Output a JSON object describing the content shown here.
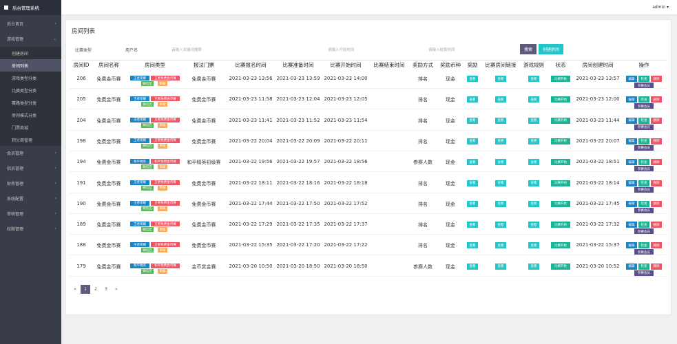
{
  "app": {
    "title": "后台管理系统",
    "user": "admin",
    "user_caret": "▾"
  },
  "sidebar": {
    "menus": [
      {
        "label": "后台首页"
      },
      {
        "label": "游戏管理",
        "open": true,
        "children": [
          "创建房间",
          "房间列表",
          "游戏类型分类",
          "比赛类型分类",
          "赛路类型分类",
          "房间模式分类",
          "门票商城",
          "积分商管理"
        ]
      },
      {
        "label": "会员管理"
      },
      {
        "label": "招员管理"
      },
      {
        "label": "财务管理"
      },
      {
        "label": "系统配置"
      },
      {
        "label": "审核管理"
      },
      {
        "label": "权限管理"
      }
    ],
    "active_child": "房间列表"
  },
  "page": {
    "title": "房间列表"
  },
  "filters": {
    "game_type_label": "比赛类型",
    "user_label": "用户名",
    "keyword_placeholder": "请输入关键词搜索",
    "start_placeholder": "请输入开始时间",
    "end_placeholder": "请输入结束时间",
    "search_button": "搜索",
    "create_button": "创建房间"
  },
  "table": {
    "headers": [
      "房间ID",
      "房间名称",
      "房间类型",
      "报法门票",
      "比赛报名时间",
      "比赛准备时间",
      "比赛开始时间",
      "比赛结束时间",
      "奖励方式",
      "奖励币种",
      "奖励",
      "比赛房间链接",
      "游戏规则",
      "状态",
      "房间创建时间",
      "操作"
    ],
    "rows": [
      {
        "id": "206",
        "name": "免费金币赛",
        "tags": [
          "王者荣耀",
          "王者免费金币赛",
          "微信区",
          "审核"
        ],
        "ticket": "免费金币赛",
        "reg": "2021-03-23 13:56",
        "prep": "2021-03-23 13:59",
        "start": "2021-03-23 14:00",
        "end": "",
        "method": "排名",
        "currency": "现金",
        "reward": "查看",
        "link": "查看",
        "rule": "查看",
        "status": "比赛开始",
        "created": "2021-03-23 13:57"
      },
      {
        "id": "205",
        "name": "免费金币赛",
        "tags": [
          "王者荣耀",
          "王者免费金币赛",
          "微信区",
          "审核"
        ],
        "ticket": "免费金币赛",
        "reg": "2021-03-23 11:58",
        "prep": "2021-03-23 12:04",
        "start": "2021-03-23 12:05",
        "end": "",
        "method": "排名",
        "currency": "现金",
        "reward": "查看",
        "link": "查看",
        "rule": "查看",
        "status": "比赛开始",
        "created": "2021-03-23 12:00"
      },
      {
        "id": "204",
        "name": "免费金币赛",
        "tags": [
          "王者荣耀",
          "王者免费金币赛",
          "微信区",
          "审核"
        ],
        "ticket": "免费金币赛",
        "reg": "2021-03-23 11:41",
        "prep": "2021-03-23 11:52",
        "start": "2021-03-23 11:54",
        "end": "",
        "method": "排名",
        "currency": "现金",
        "reward": "查看",
        "link": "查看",
        "rule": "查看",
        "status": "比赛开始",
        "created": "2021-03-23 11:44"
      },
      {
        "id": "198",
        "name": "免费金币赛",
        "tags": [
          "王者荣耀",
          "王者免费金币赛",
          "微信区",
          "审核"
        ],
        "ticket": "免费金币赛",
        "reg": "2021-03-22 20:04",
        "prep": "2021-03-22 20:09",
        "start": "2021-03-22 20:11",
        "end": "",
        "method": "排名",
        "currency": "现金",
        "reward": "查看",
        "link": "查看",
        "rule": "查看",
        "status": "比赛开始",
        "created": "2021-03-22 20:07"
      },
      {
        "id": "194",
        "name": "免费金币赛",
        "tags": [
          "和平精英",
          "和平免费金币赛",
          "微信区",
          "审核"
        ],
        "ticket": "和平精英初级赛",
        "reg": "2021-03-22 19:56",
        "prep": "2021-03-22 19:57",
        "start": "2021-03-22 18:56",
        "end": "",
        "method": "参赛人数",
        "currency": "现金",
        "reward": "查看",
        "link": "查看",
        "rule": "查看",
        "status": "比赛开始",
        "created": "2021-03-22 18:51"
      },
      {
        "id": "191",
        "name": "免费金币赛",
        "tags": [
          "王者荣耀",
          "王者免费金币赛",
          "微信区",
          "审核"
        ],
        "ticket": "免费金币赛",
        "reg": "2021-03-22 18:11",
        "prep": "2021-03-22 18:16",
        "start": "2021-03-22 18:18",
        "end": "",
        "method": "排名",
        "currency": "现金",
        "reward": "查看",
        "link": "查看",
        "rule": "查看",
        "status": "比赛开始",
        "created": "2021-03-22 18:14"
      },
      {
        "id": "190",
        "name": "免费金币赛",
        "tags": [
          "王者荣耀",
          "王者免费金币赛",
          "微信区",
          "审核"
        ],
        "ticket": "免费金币赛",
        "reg": "2021-03-22 17:44",
        "prep": "2021-03-22 17:50",
        "start": "2021-03-22 17:52",
        "end": "",
        "method": "排名",
        "currency": "现金",
        "reward": "查看",
        "link": "查看",
        "rule": "查看",
        "status": "比赛开始",
        "created": "2021-03-22 17:45"
      },
      {
        "id": "189",
        "name": "免费金币赛",
        "tags": [
          "王者荣耀",
          "王者免费金币赛",
          "微信区",
          "审核"
        ],
        "ticket": "免费金币赛",
        "reg": "2021-03-22 17:29",
        "prep": "2021-03-22 17:35",
        "start": "2021-03-22 17:37",
        "end": "",
        "method": "排名",
        "currency": "现金",
        "reward": "查看",
        "link": "查看",
        "rule": "查看",
        "status": "比赛开始",
        "created": "2021-03-22 17:32"
      },
      {
        "id": "188",
        "name": "免费金币赛",
        "tags": [
          "王者荣耀",
          "王者免费金币赛",
          "微信区",
          "审核"
        ],
        "ticket": "免费金币赛",
        "reg": "2021-03-22 15:35",
        "prep": "2021-03-22 17:20",
        "start": "2021-03-22 17:22",
        "end": "",
        "method": "排名",
        "currency": "现金",
        "reward": "查看",
        "link": "查看",
        "rule": "查看",
        "status": "比赛开始",
        "created": "2021-03-22 15:37"
      },
      {
        "id": "179",
        "name": "免费金币赛",
        "tags": [
          "和平精英",
          "和平免费金币赛",
          "微信区",
          "审核"
        ],
        "ticket": "金币赏金赛",
        "reg": "2021-03-20 10:50",
        "prep": "2021-03-20 18:50",
        "start": "2021-03-20 18:50",
        "end": "",
        "method": "参赛人数",
        "currency": "现金",
        "reward": "查看",
        "link": "查看",
        "rule": "查看",
        "status": "比赛开始",
        "created": "2021-03-20 10:52"
      }
    ],
    "actions": {
      "edit": "编辑",
      "view": "检查",
      "delete": "删除",
      "participants": "参赛会员"
    }
  },
  "pagination": {
    "prev": "«",
    "pages": [
      "1",
      "2",
      "3"
    ],
    "next": "»",
    "current": "1"
  },
  "colors": {
    "sidebar": "#393d49",
    "brand": "#2b2f3a",
    "teal": "#1ab394",
    "cyan": "#23c6c8",
    "blue": "#1c84c6",
    "red": "#ed5565",
    "orange": "#f8ac59",
    "green": "#5cb85c",
    "purple": "#5a4f8c",
    "search": "#5d5a7a"
  }
}
